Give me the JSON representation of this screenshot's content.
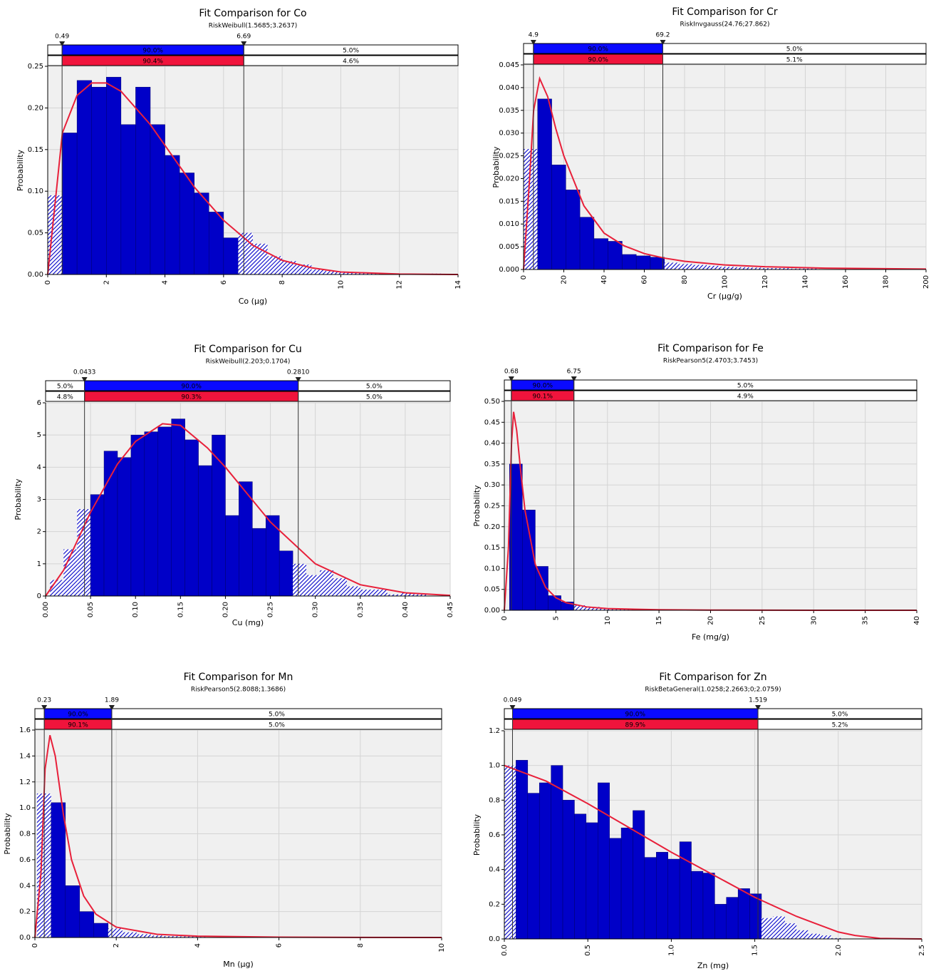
{
  "chart_data": [
    {
      "type": "histogram",
      "title": "Fit Comparison for Co",
      "subtitle": "RiskWeibull(1.5685;3.2637)",
      "xlabel": "Co (µg)",
      "ylabel": "Probability",
      "bins": [
        0,
        0.5,
        1,
        1.5,
        2,
        2.5,
        3,
        3.5,
        4,
        4.5,
        5,
        5.5,
        6,
        6.5,
        7,
        7.5,
        8,
        8.5,
        9,
        9.5,
        10,
        10.5,
        11,
        11.5,
        12,
        12.5,
        13,
        13.5,
        14
      ],
      "values": [
        0.095,
        0.17,
        0.233,
        0.225,
        0.237,
        0.18,
        0.225,
        0.18,
        0.143,
        0.122,
        0.098,
        0.075,
        0.044,
        0.05,
        0.037,
        0.022,
        0.016,
        0.012,
        0.006,
        0.004,
        0.003,
        0.002,
        0.001,
        0.001,
        0.0005,
        0.0005,
        0.001,
        0.0005
      ],
      "color": "#0000c8",
      "fit": {
        "color": "#e8203a",
        "x": [
          0,
          0.5,
          1,
          1.5,
          2,
          2.5,
          3,
          3.5,
          4,
          5,
          6,
          7,
          8,
          9,
          10,
          12,
          14
        ],
        "values": [
          0,
          0.17,
          0.215,
          0.23,
          0.23,
          0.22,
          0.2,
          0.18,
          0.155,
          0.105,
          0.065,
          0.035,
          0.017,
          0.008,
          0.003,
          0.0005,
          0
        ]
      },
      "delimiters": {
        "left": 0.49,
        "right": 6.69
      },
      "input_pct": {
        "middle": {
          "value": 90,
          "label": "90.0%"
        },
        "right": {
          "value": 5,
          "label": "5.0%"
        }
      },
      "fit_pct": {
        "middle": {
          "value": 90.4,
          "label": "90.4%"
        },
        "right": {
          "value": 4.6,
          "label": "4.6%"
        }
      },
      "xlim": [
        0,
        14
      ],
      "xticks": [
        0,
        2,
        4,
        6,
        8,
        10,
        12,
        14
      ],
      "ylim": [
        0,
        0.25
      ],
      "yticks": [
        {
          "value": 0,
          "label": "0.00"
        },
        {
          "value": 0.05,
          "label": "0.05"
        },
        {
          "value": 0.1,
          "label": "0.10"
        },
        {
          "value": 0.15,
          "label": "0.15"
        },
        {
          "value": 0.2,
          "label": "0.20"
        },
        {
          "value": 0.25,
          "label": "0.25"
        }
      ],
      "grid": true
    },
    {
      "type": "histogram",
      "title": "Fit Comparison for Cr",
      "subtitle": "RiskInvgauss(24.76;27.862)",
      "xlabel": "Cr (µg/g)",
      "ylabel": "Probability",
      "bins": [
        0,
        7,
        14,
        21,
        28,
        35,
        42,
        49,
        56,
        63,
        70,
        77,
        84,
        91,
        98,
        105,
        112,
        119,
        126,
        133,
        140,
        147
      ],
      "values": [
        0.0265,
        0.0375,
        0.023,
        0.0175,
        0.0115,
        0.0068,
        0.0062,
        0.0033,
        0.003,
        0.0027,
        0.0015,
        0.0012,
        0.001,
        0.0008,
        0.0006,
        0.0005,
        0.0004,
        0.0003,
        0.0003,
        0.0002,
        0.0002
      ],
      "color": "#0000c8",
      "fit": {
        "color": "#e8203a",
        "x": [
          0,
          3,
          5,
          8,
          12,
          16,
          20,
          30,
          40,
          50,
          60,
          70,
          80,
          100,
          120,
          150,
          200
        ],
        "values": [
          0,
          0.02,
          0.035,
          0.042,
          0.038,
          0.031,
          0.025,
          0.014,
          0.008,
          0.0052,
          0.0035,
          0.0025,
          0.0018,
          0.001,
          0.0006,
          0.0003,
          0.0001
        ]
      },
      "delimiters": {
        "left": 4.9,
        "right": 69.2
      },
      "input_pct": {
        "middle": {
          "value": 90,
          "label": "90.0%"
        },
        "right": {
          "value": 5,
          "label": "5.0%"
        }
      },
      "fit_pct": {
        "middle": {
          "value": 90,
          "label": "90.0%"
        },
        "right": {
          "value": 5.1,
          "label": "5.1%"
        }
      },
      "xlim": [
        0,
        200
      ],
      "xticks": [
        0,
        20,
        40,
        60,
        80,
        100,
        120,
        140,
        160,
        180,
        200
      ],
      "ylim": [
        0,
        0.045
      ],
      "yticks": [
        {
          "value": 0,
          "label": "0.000"
        },
        {
          "value": 0.005,
          "label": "0.005"
        },
        {
          "value": 0.01,
          "label": "0.010"
        },
        {
          "value": 0.015,
          "label": "0.015"
        },
        {
          "value": 0.02,
          "label": "0.020"
        },
        {
          "value": 0.025,
          "label": "0.025"
        },
        {
          "value": 0.03,
          "label": "0.030"
        },
        {
          "value": 0.035,
          "label": "0.035"
        },
        {
          "value": 0.04,
          "label": "0.040"
        },
        {
          "value": 0.045,
          "label": "0.045"
        }
      ],
      "grid": true
    },
    {
      "type": "histogram",
      "title": "Fit Comparison for Cu",
      "subtitle": "RiskWeibull(2.203;0.1704)",
      "xlabel": "Cu (mg)",
      "ylabel": "Probability",
      "bins": [
        0.005,
        0.02,
        0.035,
        0.05,
        0.065,
        0.08,
        0.095,
        0.11,
        0.125,
        0.14,
        0.155,
        0.17,
        0.185,
        0.2,
        0.215,
        0.23,
        0.245,
        0.26,
        0.275,
        0.29,
        0.305,
        0.32,
        0.335,
        0.35,
        0.365,
        0.38,
        0.395,
        0.41,
        0.425
      ],
      "values": [
        0.5,
        1.45,
        2.7,
        3.15,
        4.5,
        4.3,
        5,
        5.1,
        5.25,
        5.5,
        4.85,
        4.05,
        5,
        2.5,
        3.55,
        2.1,
        2.5,
        1.4,
        1,
        0.65,
        0.8,
        0.55,
        0.3,
        0.2,
        0.2,
        0.05,
        0.1,
        0.05
      ],
      "color": "#0000c8",
      "fit": {
        "color": "#e8203a",
        "x": [
          0,
          0.02,
          0.05,
          0.08,
          0.1,
          0.13,
          0.15,
          0.18,
          0.2,
          0.25,
          0.3,
          0.35,
          0.4,
          0.45
        ],
        "values": [
          0,
          0.8,
          2.6,
          4.1,
          4.8,
          5.35,
          5.3,
          4.6,
          4,
          2.3,
          1,
          0.35,
          0.1,
          0.02
        ]
      },
      "delimiters": {
        "left": 0.0433,
        "right": {
          "value": 0.281,
          "label": "0.2810"
        }
      },
      "input_pct": {
        "left": {
          "value": 5,
          "label": "5.0%"
        },
        "middle": {
          "value": 90,
          "label": "90.0%"
        },
        "right": {
          "value": 5,
          "label": "5.0%"
        }
      },
      "fit_pct": {
        "left": {
          "value": 4.8,
          "label": "4.8%"
        },
        "middle": {
          "value": 90.3,
          "label": "90.3%"
        },
        "right": {
          "value": 5,
          "label": "5.0%"
        }
      },
      "xlim": [
        0,
        0.45
      ],
      "xticks": [
        {
          "value": 0,
          "label": "0.00"
        },
        {
          "value": 0.05,
          "label": "0.05"
        },
        {
          "value": 0.1,
          "label": "0.10"
        },
        {
          "value": 0.15,
          "label": "0.15"
        },
        {
          "value": 0.2,
          "label": "0.20"
        },
        {
          "value": 0.25,
          "label": "0.25"
        },
        {
          "value": 0.3,
          "label": "0.30"
        },
        {
          "value": 0.35,
          "label": "0.35"
        },
        {
          "value": 0.4,
          "label": "0.40"
        },
        {
          "value": 0.45,
          "label": "0.45"
        }
      ],
      "ylim": [
        0,
        6
      ],
      "yticks": [
        0,
        1,
        2,
        3,
        4,
        5,
        6
      ],
      "grid": true
    },
    {
      "type": "histogram",
      "title": "Fit Comparison for Fe",
      "subtitle": "RiskPearson5(2.4703;3.7453)",
      "xlabel": "Fe (mg/g)",
      "ylabel": "Probability",
      "bins": [
        0.5,
        1.75,
        3,
        4.25,
        5.5,
        6.75,
        8,
        9.25,
        10.5,
        11.75,
        13,
        14.25,
        15.5
      ],
      "values": [
        0.35,
        0.24,
        0.105,
        0.035,
        0.02,
        0.012,
        0.008,
        0.005,
        0.004,
        0.003,
        0.002,
        0.0015
      ],
      "color": "#0000c8",
      "fit": {
        "color": "#e8203a",
        "x": [
          0,
          0.4,
          0.7,
          0.9,
          1.2,
          1.6,
          2,
          3,
          4,
          5,
          6,
          8,
          10,
          15,
          20,
          30,
          40
        ],
        "values": [
          0,
          0.15,
          0.4,
          0.475,
          0.43,
          0.33,
          0.24,
          0.11,
          0.055,
          0.03,
          0.018,
          0.008,
          0.004,
          0.0012,
          0.0005,
          0.0001,
          0
        ]
      },
      "delimiters": {
        "left": 0.68,
        "right": 6.75
      },
      "input_pct": {
        "middle": {
          "value": 90,
          "label": "90.0%"
        },
        "right": {
          "value": 5,
          "label": "5.0%"
        }
      },
      "fit_pct": {
        "middle": {
          "value": 90.1,
          "label": "90.1%"
        },
        "right": {
          "value": 4.9,
          "label": "4.9%"
        }
      },
      "xlim": [
        0,
        40
      ],
      "xticks": [
        0,
        5,
        10,
        15,
        20,
        25,
        30,
        35,
        40
      ],
      "ylim": [
        0,
        0.5
      ],
      "yticks": [
        {
          "value": 0,
          "label": "0.00"
        },
        {
          "value": 0.05,
          "label": "0.05"
        },
        {
          "value": 0.1,
          "label": "0.10"
        },
        {
          "value": 0.15,
          "label": "0.15"
        },
        {
          "value": 0.2,
          "label": "0.20"
        },
        {
          "value": 0.25,
          "label": "0.25"
        },
        {
          "value": 0.3,
          "label": "0.30"
        },
        {
          "value": 0.35,
          "label": "0.35"
        },
        {
          "value": 0.4,
          "label": "0.40"
        },
        {
          "value": 0.45,
          "label": "0.45"
        },
        {
          "value": 0.5,
          "label": "0.50"
        }
      ],
      "grid": true
    },
    {
      "type": "histogram",
      "title": "Fit Comparison for Mn",
      "subtitle": "RiskPearson5(2.8088;1.3686)",
      "xlabel": "Mn (µg)",
      "ylabel": "Probability",
      "bins": [
        0.05,
        0.4,
        0.75,
        1.1,
        1.45,
        1.8,
        2.15,
        2.5,
        2.85,
        3.2,
        3.55,
        3.9,
        4.25
      ],
      "values": [
        1.11,
        1.04,
        0.4,
        0.2,
        0.11,
        0.07,
        0.04,
        0.025,
        0.015,
        0.01,
        0.008,
        0.005
      ],
      "color": "#0000c8",
      "fit": {
        "color": "#e8203a",
        "x": [
          0,
          0.15,
          0.25,
          0.37,
          0.5,
          0.7,
          0.9,
          1.2,
          1.5,
          2,
          3,
          4,
          6,
          8,
          10
        ],
        "values": [
          0,
          0.5,
          1.3,
          1.56,
          1.4,
          0.95,
          0.6,
          0.32,
          0.18,
          0.08,
          0.025,
          0.01,
          0.003,
          0.001,
          0
        ]
      },
      "delimiters": {
        "left": 0.23,
        "right": 1.89
      },
      "input_pct": {
        "middle": {
          "value": 90,
          "label": "90.0%"
        },
        "right": {
          "value": 5,
          "label": "5.0%"
        }
      },
      "fit_pct": {
        "middle": {
          "value": 90.1,
          "label": "90.1%"
        },
        "right": {
          "value": 5,
          "label": "5.0%"
        }
      },
      "xlim": [
        0,
        10
      ],
      "xticks": [
        0,
        2,
        4,
        6,
        8,
        10
      ],
      "ylim": [
        0,
        1.6
      ],
      "yticks": [
        {
          "value": 0,
          "label": "0.0"
        },
        {
          "value": 0.2,
          "label": "0.2"
        },
        {
          "value": 0.4,
          "label": "0.4"
        },
        {
          "value": 0.6,
          "label": "0.6"
        },
        {
          "value": 0.8,
          "label": "0.8"
        },
        {
          "value": 1,
          "label": "1.0"
        },
        {
          "value": 1.2,
          "label": "1.2"
        },
        {
          "value": 1.4,
          "label": "1.4"
        },
        {
          "value": 1.6,
          "label": "1.6"
        }
      ],
      "grid": true
    },
    {
      "type": "histogram",
      "title": "Fit Comparison for Zn",
      "subtitle": "RiskBetaGeneral(1.0258;2.2663;0;2.0759)",
      "xlabel": "Zn (mg)",
      "ylabel": "Probability",
      "bins": [
        0,
        0.07,
        0.14,
        0.21,
        0.28,
        0.35,
        0.42,
        0.49,
        0.56,
        0.63,
        0.7,
        0.77,
        0.84,
        0.91,
        0.98,
        1.05,
        1.12,
        1.19,
        1.26,
        1.33,
        1.4,
        1.47,
        1.54,
        1.61,
        1.68,
        1.75,
        1.82,
        1.89,
        1.96,
        2.03,
        2.1
      ],
      "values": [
        1,
        1.03,
        0.84,
        0.9,
        1,
        0.8,
        0.72,
        0.67,
        0.9,
        0.58,
        0.64,
        0.74,
        0.47,
        0.5,
        0.46,
        0.56,
        0.39,
        0.38,
        0.2,
        0.24,
        0.29,
        0.26,
        0.12,
        0.13,
        0.09,
        0.05,
        0.03,
        0.02,
        0.005,
        0.002
      ],
      "color": "#0000c8",
      "fit": {
        "color": "#e8203a",
        "x": [
          0,
          0.25,
          0.5,
          0.75,
          1,
          1.25,
          1.5,
          1.75,
          2,
          2.1,
          2.25,
          2.5
        ],
        "values": [
          1,
          0.91,
          0.78,
          0.64,
          0.5,
          0.37,
          0.24,
          0.13,
          0.04,
          0.02,
          0.003,
          0
        ]
      },
      "delimiters": {
        "left": 0.049,
        "right": 1.519
      },
      "input_pct": {
        "middle": {
          "value": 90,
          "label": "90.0%"
        },
        "right": {
          "value": 5,
          "label": "5.0%"
        }
      },
      "fit_pct": {
        "middle": {
          "value": 89.9,
          "label": "89.9%"
        },
        "right": {
          "value": 5.2,
          "label": "5.2%"
        }
      },
      "xlim": [
        0,
        2.5
      ],
      "xticks": [
        {
          "value": 0,
          "label": "0.0"
        },
        {
          "value": 0.5,
          "label": "0.5"
        },
        {
          "value": 1,
          "label": "1.0"
        },
        {
          "value": 1.5,
          "label": "1.5"
        },
        {
          "value": 2,
          "label": "2.0"
        },
        {
          "value": 2.5,
          "label": "2.5"
        }
      ],
      "ylim": [
        0,
        1.2
      ],
      "yticks": [
        {
          "value": 0,
          "label": "0.0"
        },
        {
          "value": 0.2,
          "label": "0.2"
        },
        {
          "value": 0.4,
          "label": "0.4"
        },
        {
          "value": 0.6,
          "label": "0.6"
        },
        {
          "value": 0.8,
          "label": "0.8"
        },
        {
          "value": 1,
          "label": "1.0"
        },
        {
          "value": 1.2,
          "label": "1.2"
        }
      ],
      "grid": true
    }
  ]
}
